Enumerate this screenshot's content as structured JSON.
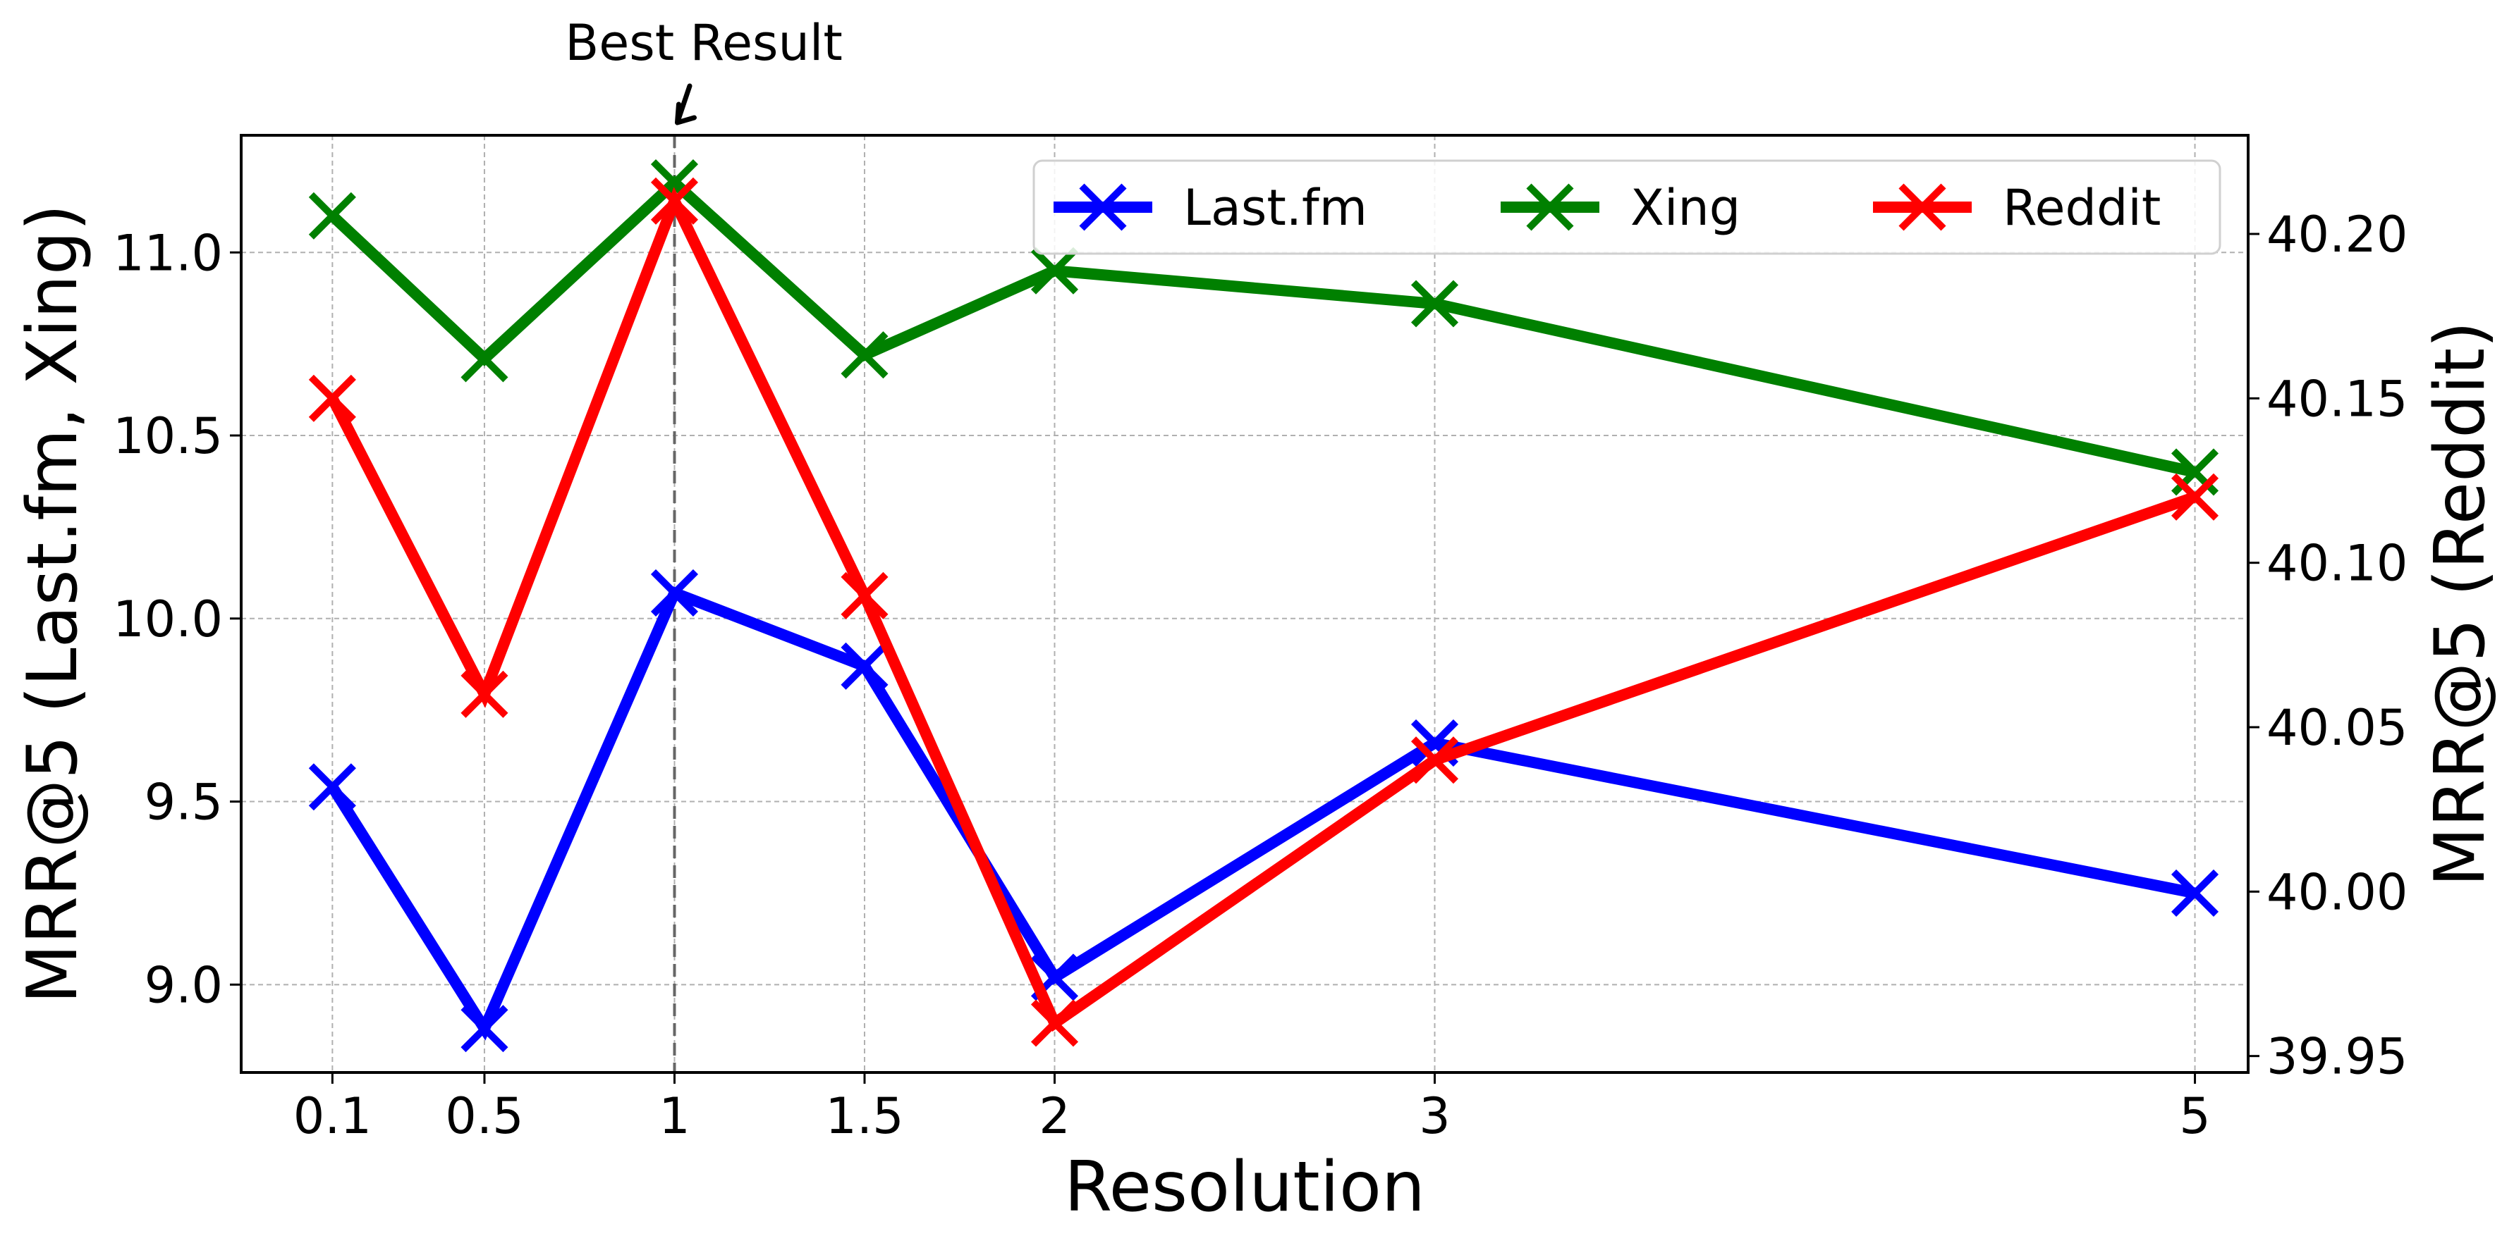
{
  "chart_data": {
    "type": "line",
    "xlabel": "Resolution",
    "ylabel_left": "MRR@5 (Last.fm, Xing)",
    "ylabel_right": "MRR@5 (Reddit)",
    "x": [
      0.1,
      0.5,
      1,
      1.5,
      2,
      3,
      5
    ],
    "x_tick_labels": [
      "0.1",
      "0.5",
      "1",
      "1.5",
      "2",
      "3",
      "5"
    ],
    "ylim_left": [
      8.76,
      11.32
    ],
    "ylim_right": [
      39.945,
      40.23
    ],
    "yticks_left": [
      "9.0",
      "9.5",
      "10.0",
      "10.5",
      "11.0"
    ],
    "yticks_right": [
      "39.95",
      "40.00",
      "40.05",
      "40.10",
      "40.15",
      "40.20"
    ],
    "grid": true,
    "legend_position": "top-right",
    "series": [
      {
        "name": "Last.fm",
        "axis": "left",
        "color": "#0000ff",
        "values": [
          9.54,
          8.88,
          10.07,
          9.87,
          9.02,
          9.66,
          9.25
        ]
      },
      {
        "name": "Xing",
        "axis": "left",
        "color": "#008000",
        "values": [
          11.1,
          10.71,
          11.19,
          10.72,
          10.95,
          10.86,
          10.4
        ]
      },
      {
        "name": "Reddit",
        "axis": "right",
        "color": "#ff0000",
        "values": [
          40.15,
          40.06,
          40.21,
          40.09,
          39.96,
          40.04,
          40.12
        ]
      }
    ],
    "annotations": [
      {
        "text": "Best Result",
        "x": 1
      }
    ]
  }
}
